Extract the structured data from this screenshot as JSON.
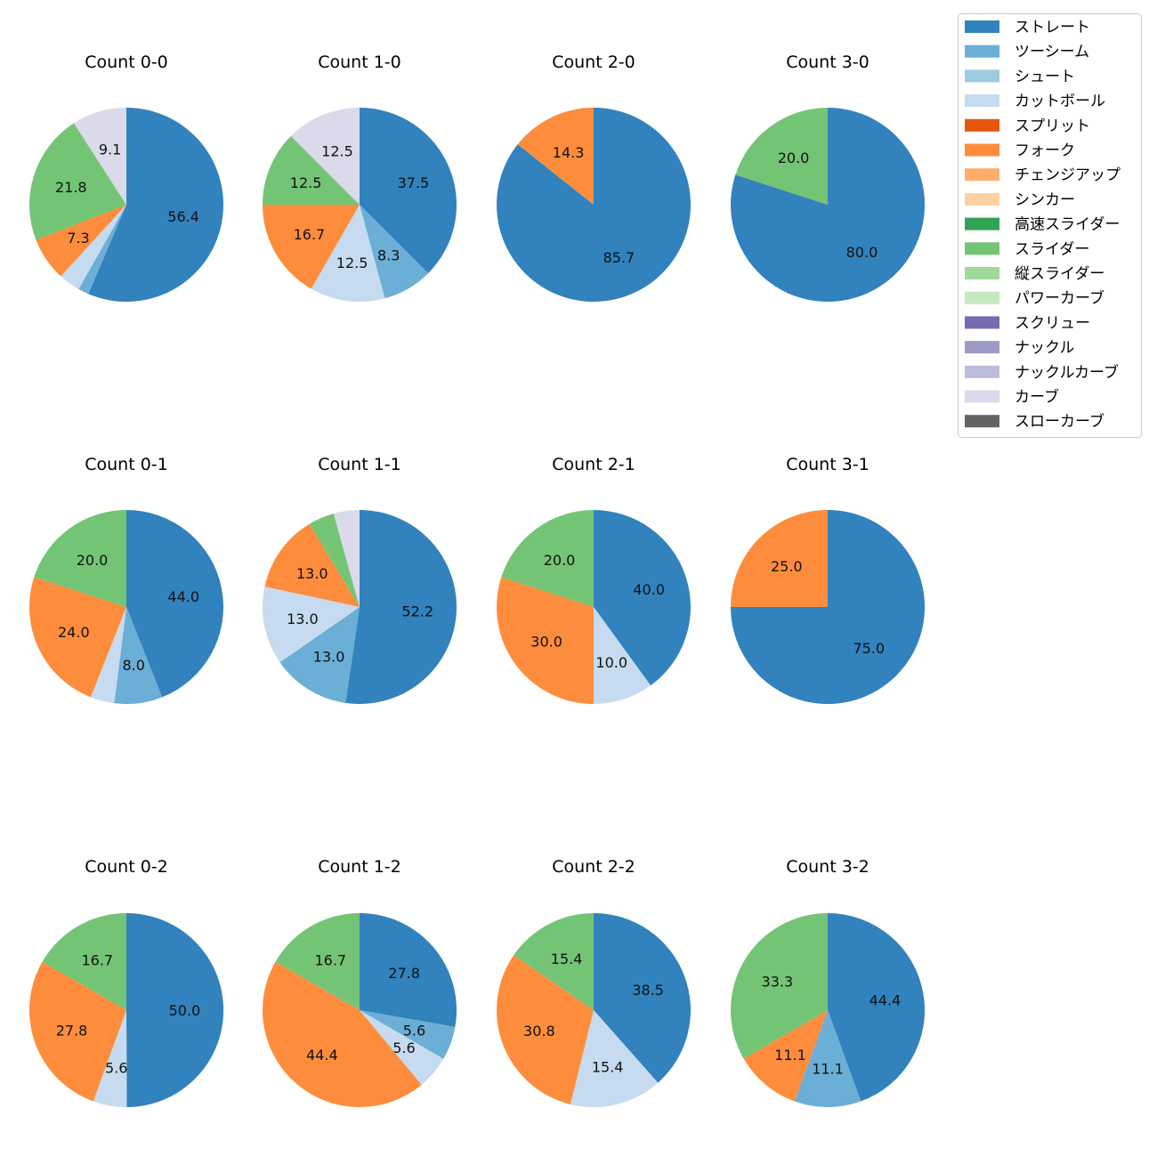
{
  "legend": {
    "items": [
      {
        "name": "ストレート",
        "color": "#3182bd"
      },
      {
        "name": "ツーシーム",
        "color": "#6baed6"
      },
      {
        "name": "シュート",
        "color": "#9ecae1"
      },
      {
        "name": "カットボール",
        "color": "#c6dbef"
      },
      {
        "name": "スプリット",
        "color": "#e6550d"
      },
      {
        "name": "フォーク",
        "color": "#fd8d3c"
      },
      {
        "name": "チェンジアップ",
        "color": "#fdae6b"
      },
      {
        "name": "シンカー",
        "color": "#fdd0a2"
      },
      {
        "name": "高速スライダー",
        "color": "#31a354"
      },
      {
        "name": "スライダー",
        "color": "#74c476"
      },
      {
        "name": "縦スライダー",
        "color": "#a1d99b"
      },
      {
        "name": "パワーカーブ",
        "color": "#c7e9c0"
      },
      {
        "name": "スクリュー",
        "color": "#756bb1"
      },
      {
        "name": "ナックル",
        "color": "#9e9ac8"
      },
      {
        "name": "ナックルカーブ",
        "color": "#bcbddc"
      },
      {
        "name": "カーブ",
        "color": "#dadaeb"
      },
      {
        "name": "スローカーブ",
        "color": "#636363"
      }
    ]
  },
  "chart_data": [
    {
      "type": "pie",
      "title": "Count 0-0",
      "slices": [
        {
          "pitch": "ストレート",
          "value": 56.4
        },
        {
          "pitch": "ツーシーム",
          "value": 1.8
        },
        {
          "pitch": "カットボール",
          "value": 3.6
        },
        {
          "pitch": "フォーク",
          "value": 7.3
        },
        {
          "pitch": "スライダー",
          "value": 21.8
        },
        {
          "pitch": "カーブ",
          "value": 9.1
        }
      ]
    },
    {
      "type": "pie",
      "title": "Count 1-0",
      "slices": [
        {
          "pitch": "ストレート",
          "value": 37.5
        },
        {
          "pitch": "ツーシーム",
          "value": 8.3
        },
        {
          "pitch": "カットボール",
          "value": 12.5
        },
        {
          "pitch": "フォーク",
          "value": 16.7
        },
        {
          "pitch": "スライダー",
          "value": 12.5
        },
        {
          "pitch": "カーブ",
          "value": 12.5
        }
      ]
    },
    {
      "type": "pie",
      "title": "Count 2-0",
      "slices": [
        {
          "pitch": "ストレート",
          "value": 85.7
        },
        {
          "pitch": "フォーク",
          "value": 14.3
        }
      ]
    },
    {
      "type": "pie",
      "title": "Count 3-0",
      "slices": [
        {
          "pitch": "ストレート",
          "value": 80.0
        },
        {
          "pitch": "スライダー",
          "value": 20.0
        }
      ]
    },
    {
      "type": "pie",
      "title": "Count 0-1",
      "slices": [
        {
          "pitch": "ストレート",
          "value": 44.0
        },
        {
          "pitch": "ツーシーム",
          "value": 8.0
        },
        {
          "pitch": "カットボール",
          "value": 4.0
        },
        {
          "pitch": "フォーク",
          "value": 24.0
        },
        {
          "pitch": "スライダー",
          "value": 20.0
        }
      ]
    },
    {
      "type": "pie",
      "title": "Count 1-1",
      "slices": [
        {
          "pitch": "ストレート",
          "value": 52.2
        },
        {
          "pitch": "ツーシーム",
          "value": 13.0
        },
        {
          "pitch": "カットボール",
          "value": 13.0
        },
        {
          "pitch": "フォーク",
          "value": 13.0
        },
        {
          "pitch": "スライダー",
          "value": 4.3
        },
        {
          "pitch": "カーブ",
          "value": 4.3
        }
      ]
    },
    {
      "type": "pie",
      "title": "Count 2-1",
      "slices": [
        {
          "pitch": "ストレート",
          "value": 40.0
        },
        {
          "pitch": "カットボール",
          "value": 10.0
        },
        {
          "pitch": "フォーク",
          "value": 30.0
        },
        {
          "pitch": "スライダー",
          "value": 20.0
        }
      ]
    },
    {
      "type": "pie",
      "title": "Count 3-1",
      "slices": [
        {
          "pitch": "ストレート",
          "value": 75.0
        },
        {
          "pitch": "フォーク",
          "value": 25.0
        }
      ]
    },
    {
      "type": "pie",
      "title": "Count 0-2",
      "slices": [
        {
          "pitch": "ストレート",
          "value": 50.0
        },
        {
          "pitch": "カットボール",
          "value": 5.6
        },
        {
          "pitch": "フォーク",
          "value": 27.8
        },
        {
          "pitch": "スライダー",
          "value": 16.7
        }
      ]
    },
    {
      "type": "pie",
      "title": "Count 1-2",
      "slices": [
        {
          "pitch": "ストレート",
          "value": 27.8
        },
        {
          "pitch": "ツーシーム",
          "value": 5.6
        },
        {
          "pitch": "カットボール",
          "value": 5.6
        },
        {
          "pitch": "フォーク",
          "value": 44.4
        },
        {
          "pitch": "スライダー",
          "value": 16.7
        }
      ]
    },
    {
      "type": "pie",
      "title": "Count 2-2",
      "slices": [
        {
          "pitch": "ストレート",
          "value": 38.5
        },
        {
          "pitch": "カットボール",
          "value": 15.4
        },
        {
          "pitch": "フォーク",
          "value": 30.8
        },
        {
          "pitch": "スライダー",
          "value": 15.4
        }
      ]
    },
    {
      "type": "pie",
      "title": "Count 3-2",
      "slices": [
        {
          "pitch": "ストレート",
          "value": 44.4
        },
        {
          "pitch": "ツーシーム",
          "value": 11.1
        },
        {
          "pitch": "フォーク",
          "value": 11.1
        },
        {
          "pitch": "スライダー",
          "value": 33.3
        }
      ]
    }
  ]
}
